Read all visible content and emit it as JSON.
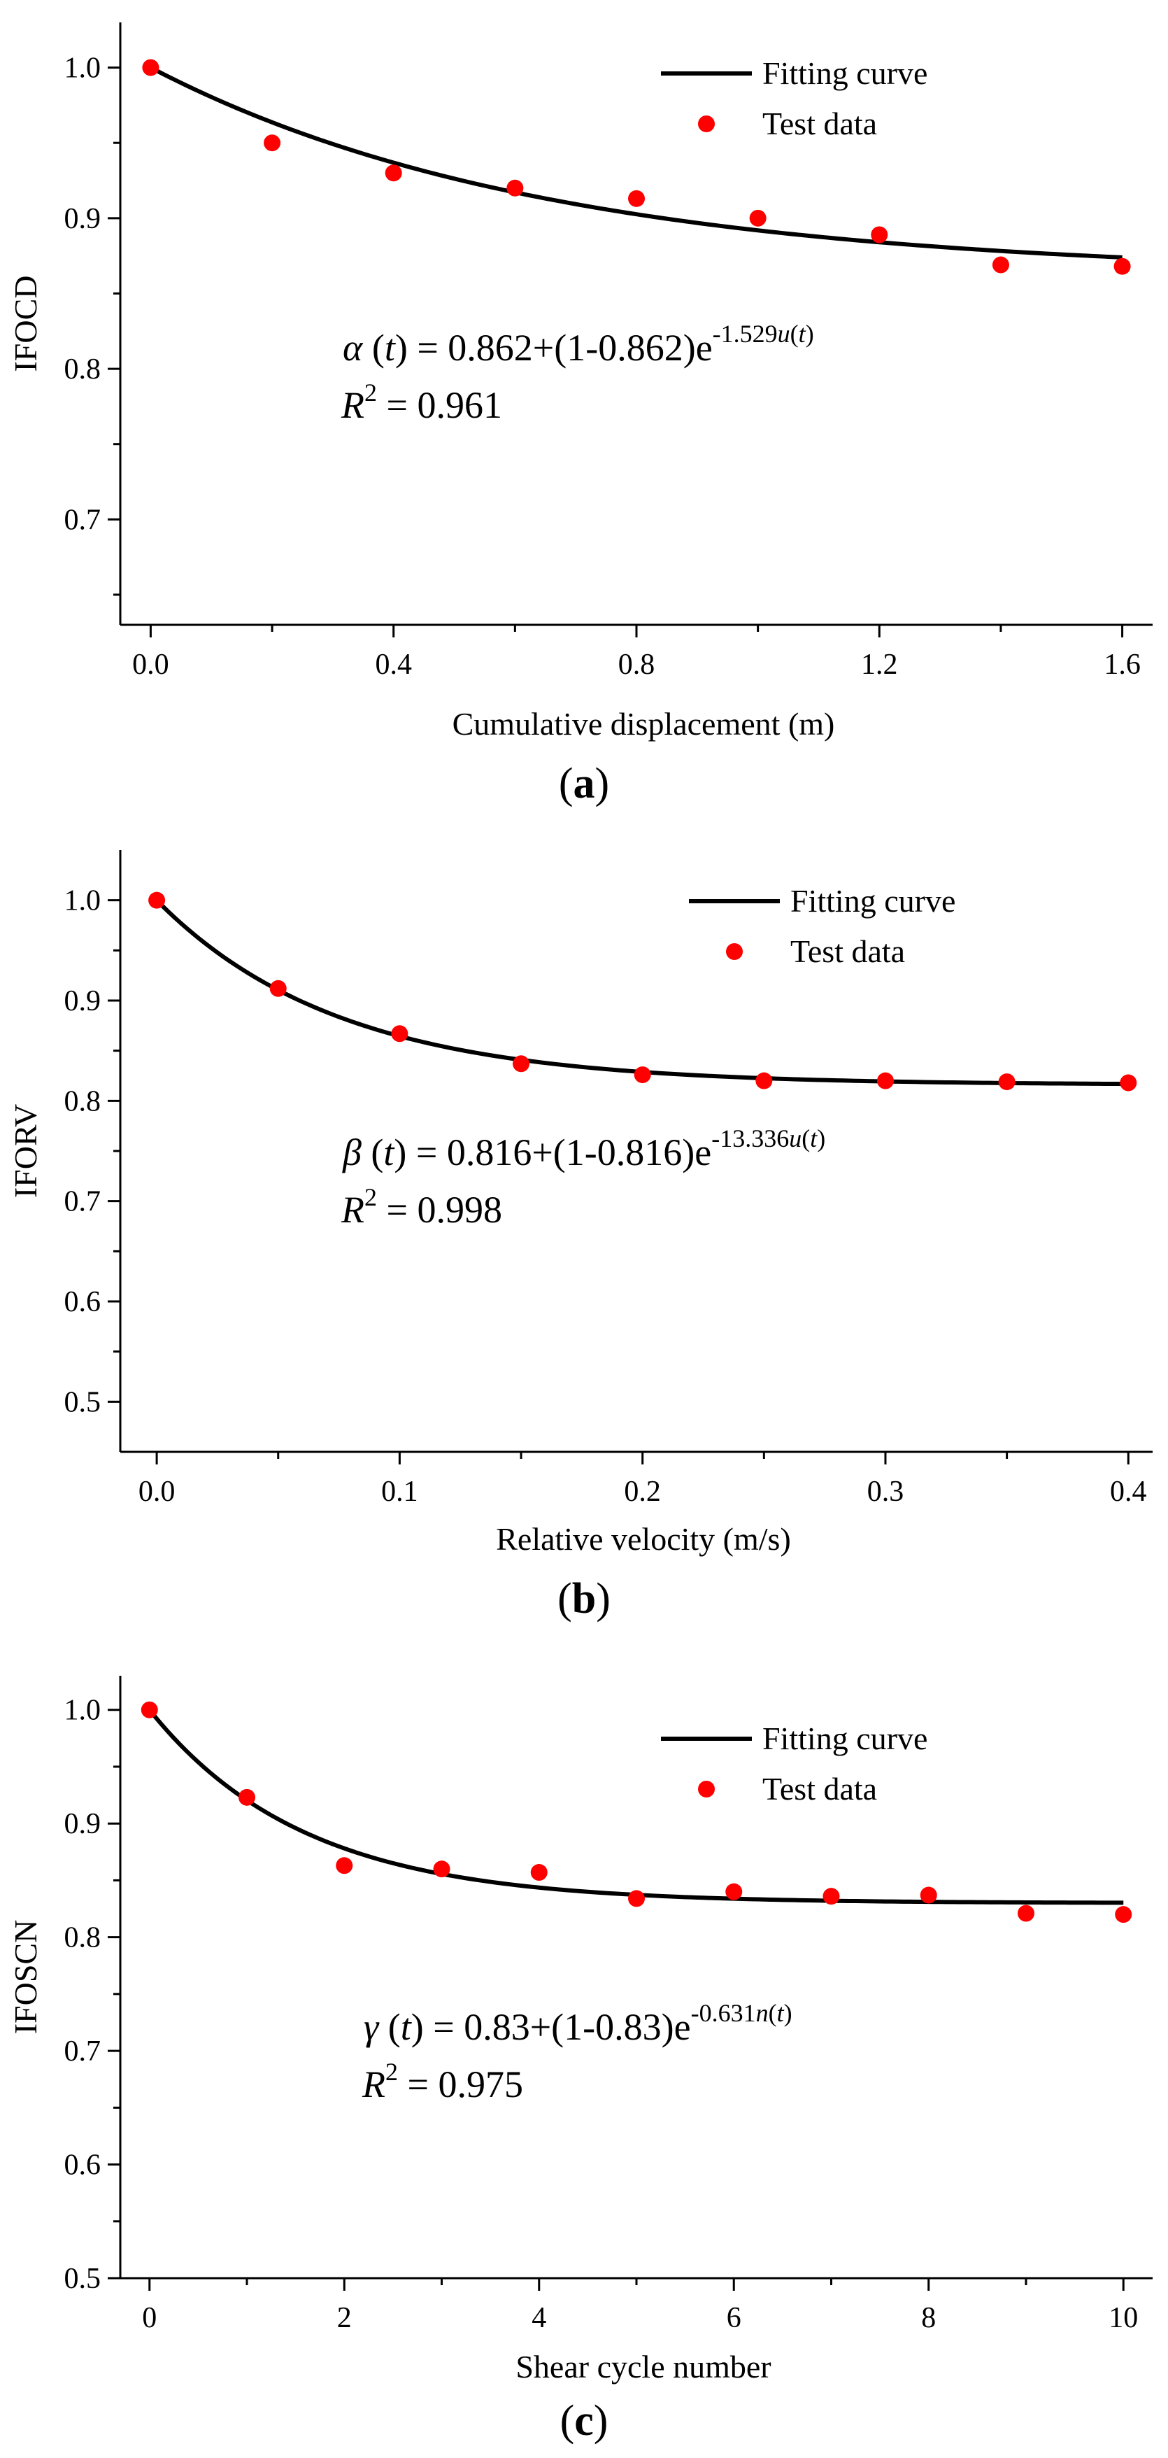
{
  "colors": {
    "line": "#000000",
    "points": "#ff0000",
    "background": "#ffffff"
  },
  "chart_data": [
    {
      "type": "scatter",
      "panel_label": "a",
      "xlabel": "Cumulative displacement (m)",
      "ylabel": "IFOCD",
      "xlim": [
        -0.05,
        1.65
      ],
      "ylim": [
        0.63,
        1.03
      ],
      "x_ticks": [
        0.0,
        0.4,
        0.8,
        1.2,
        1.6
      ],
      "x_tick_labels": [
        "0.0",
        "0.4",
        "0.8",
        "1.2",
        "1.6"
      ],
      "y_ticks": [
        0.7,
        0.8,
        0.9,
        1.0
      ],
      "y_tick_labels": [
        "0.7",
        "0.8",
        "0.9",
        "1.0"
      ],
      "legend": {
        "position": "top-right",
        "line_label": "Fitting curve",
        "points_label": "Test data"
      },
      "fit": {
        "a": 0.862,
        "k": 1.529
      },
      "equation": {
        "lhs": "α",
        "arg": "t",
        "eq_text": " = 0.862+(1-0.862)e",
        "exponent": "-1.529",
        "exp_var": "u",
        "exp_arg": "t",
        "r2_label": "R",
        "r2_sup": "2",
        "r2_text": " = 0.961"
      },
      "series": [
        {
          "name": "Test data",
          "x": [
            0,
            0.2,
            0.4,
            0.6,
            0.8,
            1.0,
            1.2,
            1.4,
            1.6
          ],
          "y": [
            1.0,
            0.95,
            0.93,
            0.92,
            0.913,
            0.9,
            0.889,
            0.869,
            0.868
          ]
        }
      ]
    },
    {
      "type": "scatter",
      "panel_label": "b",
      "xlabel": "Relative velocity (m/s)",
      "ylabel": "IFORV",
      "xlim": [
        -0.015,
        0.41
      ],
      "ylim": [
        0.45,
        1.05
      ],
      "x_ticks": [
        0.0,
        0.1,
        0.2,
        0.3,
        0.4
      ],
      "x_tick_labels": [
        "0.0",
        "0.1",
        "0.2",
        "0.3",
        "0.4"
      ],
      "y_ticks": [
        0.5,
        0.6,
        0.7,
        0.8,
        0.9,
        1.0
      ],
      "y_tick_labels": [
        "0.5",
        "0.6",
        "0.7",
        "0.8",
        "0.9",
        "1.0"
      ],
      "legend": {
        "position": "top-right",
        "line_label": "Fitting curve",
        "points_label": "Test data"
      },
      "fit": {
        "a": 0.816,
        "k": 13.336
      },
      "equation": {
        "lhs": "β",
        "arg": "t",
        "eq_text": " = 0.816+(1-0.816)e",
        "exponent": "-13.336",
        "exp_var": "u",
        "exp_arg": "t",
        "r2_label": "R",
        "r2_sup": "2",
        "r2_text": " = 0.998"
      },
      "series": [
        {
          "name": "Test data",
          "x": [
            0,
            0.05,
            0.1,
            0.15,
            0.2,
            0.25,
            0.3,
            0.35,
            0.4
          ],
          "y": [
            1.0,
            0.912,
            0.867,
            0.837,
            0.826,
            0.82,
            0.82,
            0.819,
            0.818
          ]
        }
      ]
    },
    {
      "type": "scatter",
      "panel_label": "c",
      "xlabel": "Shear cycle number",
      "ylabel": "IFOSCN",
      "xlim": [
        -0.3,
        10.3
      ],
      "ylim": [
        0.5,
        1.03
      ],
      "x_ticks": [
        0,
        2,
        4,
        6,
        8,
        10
      ],
      "x_tick_labels": [
        "0",
        "2",
        "4",
        "6",
        "8",
        "10"
      ],
      "y_ticks": [
        0.5,
        0.6,
        0.7,
        0.8,
        0.9,
        1.0
      ],
      "y_tick_labels": [
        "0.5",
        "0.6",
        "0.7",
        "0.8",
        "0.9",
        "1.0"
      ],
      "legend": {
        "position": "top-right",
        "line_label": "Fitting curve",
        "points_label": "Test data"
      },
      "fit": {
        "a": 0.83,
        "k": 0.631
      },
      "equation": {
        "lhs": "γ",
        "arg": "t",
        "eq_text": " = 0.83+(1-0.83)e",
        "exponent": "-0.631",
        "exp_var": "n",
        "exp_arg": "t",
        "r2_label": "R",
        "r2_sup": "2",
        "r2_text": " = 0.975"
      },
      "series": [
        {
          "name": "Test data",
          "x": [
            0,
            1,
            2,
            3,
            4,
            5,
            6,
            7,
            8,
            9,
            10
          ],
          "y": [
            1.0,
            0.923,
            0.863,
            0.86,
            0.857,
            0.834,
            0.84,
            0.836,
            0.837,
            0.821,
            0.82
          ]
        }
      ]
    }
  ]
}
